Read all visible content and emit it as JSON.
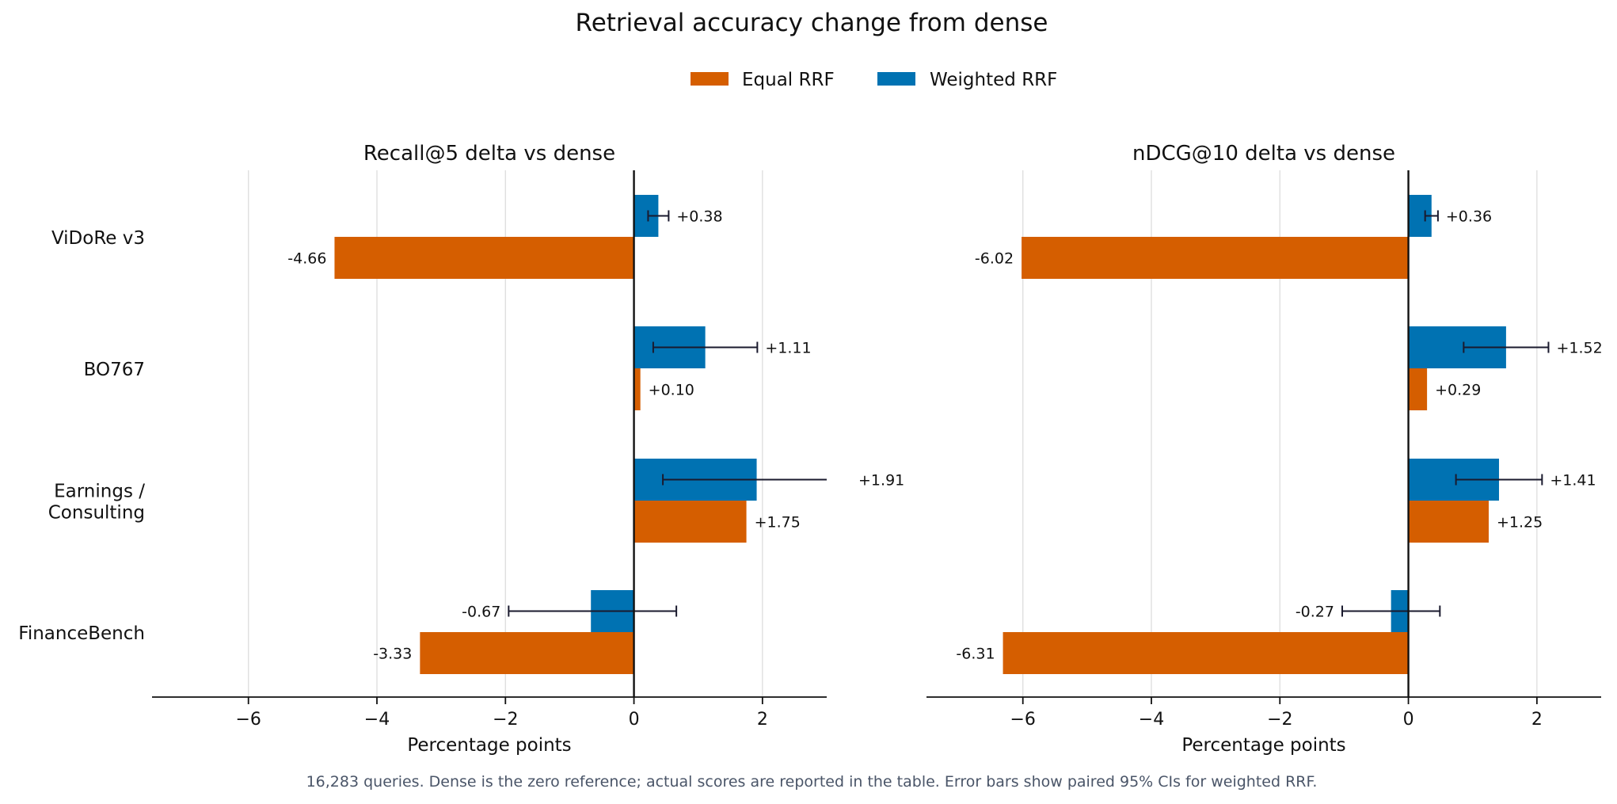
{
  "figure": {
    "title": "Retrieval accuracy change from dense",
    "footnote": "16,283 queries. Dense is the zero reference; actual scores are reported in the table. Error bars show paired 95% CIs for weighted RRF."
  },
  "legend": {
    "placement": "top-center",
    "items": [
      {
        "label": "Equal RRF",
        "color": "#D55E00"
      },
      {
        "label": "Weighted RRF",
        "color": "#0072B2"
      }
    ]
  },
  "colors": {
    "equal": "#D55E00",
    "weighted": "#0072B2",
    "grid": "#dddddd",
    "axis": "#111111",
    "footnote": "#4a5568"
  },
  "chart_data": [
    {
      "type": "bar",
      "orientation": "horizontal",
      "title": "Recall@5 delta vs dense",
      "xlabel": "Percentage points",
      "ylabel": "",
      "xlim": [
        -7.5,
        3.0
      ],
      "xticks": [
        -6,
        -4,
        -2,
        0,
        2
      ],
      "xtick_labels": [
        "−6",
        "−4",
        "−2",
        "0",
        "2"
      ],
      "grid": true,
      "categories": [
        "ViDoRe v3",
        "BO767",
        "Earnings / Consulting",
        "FinanceBench"
      ],
      "category_labels": [
        [
          "ViDoRe v3"
        ],
        [
          "BO767"
        ],
        [
          "Earnings /",
          "Consulting"
        ],
        [
          "FinanceBench"
        ]
      ],
      "series": [
        {
          "name": "Weighted RRF",
          "values": [
            0.38,
            1.11,
            1.91,
            -0.67
          ],
          "labels": [
            "+0.38",
            "+1.11",
            "+1.91",
            "-0.67"
          ],
          "ci_low": [
            0.22,
            0.3,
            0.45,
            -1.95
          ],
          "ci_high": [
            0.54,
            1.92,
            3.37,
            0.66
          ]
        },
        {
          "name": "Equal RRF",
          "values": [
            -4.66,
            0.1,
            1.75,
            -3.33
          ],
          "labels": [
            "-4.66",
            "+0.10",
            "+1.75",
            "-3.33"
          ]
        }
      ]
    },
    {
      "type": "bar",
      "orientation": "horizontal",
      "title": "nDCG@10 delta vs dense",
      "xlabel": "Percentage points",
      "ylabel": "",
      "xlim": [
        -7.5,
        3.0
      ],
      "xticks": [
        -6,
        -4,
        -2,
        0,
        2
      ],
      "xtick_labels": [
        "−6",
        "−4",
        "−2",
        "0",
        "2"
      ],
      "grid": true,
      "categories": [
        "ViDoRe v3",
        "BO767",
        "Earnings / Consulting",
        "FinanceBench"
      ],
      "category_labels": [
        [
          "ViDoRe v3"
        ],
        [
          "BO767"
        ],
        [
          "Earnings /",
          "Consulting"
        ],
        [
          "FinanceBench"
        ]
      ],
      "series": [
        {
          "name": "Weighted RRF",
          "values": [
            0.36,
            1.52,
            1.41,
            -0.27
          ],
          "labels": [
            "+0.36",
            "+1.52",
            "+1.41",
            "-0.27"
          ],
          "ci_low": [
            0.26,
            0.86,
            0.74,
            -1.03
          ],
          "ci_high": [
            0.46,
            2.18,
            2.08,
            0.49
          ]
        },
        {
          "name": "Equal RRF",
          "values": [
            -6.02,
            0.29,
            1.25,
            -6.31
          ],
          "labels": [
            "-6.02",
            "+0.29",
            "+1.25",
            "-6.31"
          ]
        }
      ]
    }
  ]
}
